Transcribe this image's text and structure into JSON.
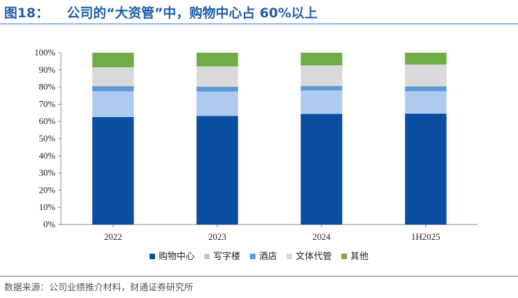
{
  "header": {
    "figure_label": "图18：",
    "title_text": "公司的“大资管”中，购物中心占 60%以上"
  },
  "footer": {
    "source": "数据来源：公司业绩推介材料，财通证券研究所"
  },
  "chart_data": {
    "type": "bar",
    "stacked": true,
    "categories": [
      "2022",
      "2023",
      "2024",
      "1H2025"
    ],
    "y_ticks": [
      "0%",
      "10%",
      "20%",
      "30%",
      "40%",
      "50%",
      "60%",
      "70%",
      "80%",
      "90%",
      "100%"
    ],
    "ylim": [
      0,
      100
    ],
    "legend_position": "bottom",
    "series": [
      {
        "name": "购物中心",
        "color": "#0a4ea2",
        "values": [
          62.5,
          63.2,
          64.4,
          64.5
        ]
      },
      {
        "name": "写字楼",
        "color": "#aecbef",
        "values": [
          15.0,
          14.2,
          13.6,
          13.1
        ]
      },
      {
        "name": "酒店",
        "color": "#5b9bd5",
        "values": [
          3.0,
          2.8,
          2.6,
          2.8
        ]
      },
      {
        "name": "文体代管",
        "color": "#d9d9d9",
        "values": [
          11.0,
          11.8,
          12.0,
          12.7
        ]
      },
      {
        "name": "其他",
        "color": "#70ad47",
        "values": [
          8.5,
          8.0,
          7.4,
          6.9
        ]
      }
    ]
  }
}
